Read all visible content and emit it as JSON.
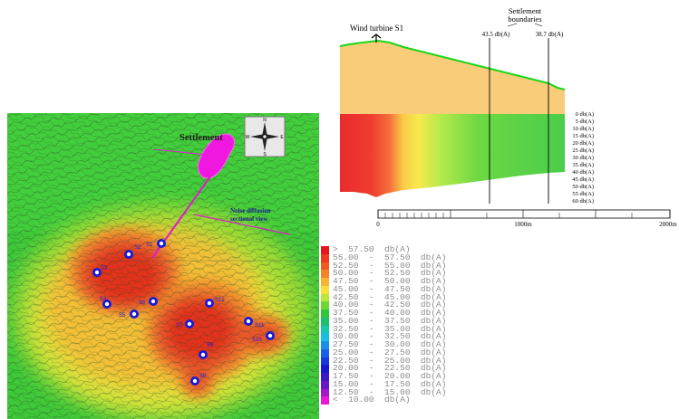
{
  "map": {
    "settlement_label": "Settlement",
    "section_label_line1": "Noise diffusion",
    "section_label_line2": "sectional view",
    "compass": {
      "n": "N",
      "s": "S",
      "e": "E",
      "w": "W"
    },
    "turbines": [
      {
        "id": "S1",
        "label": "S1"
      },
      {
        "id": "S2",
        "label": "S2"
      },
      {
        "id": "S3",
        "label": "S3"
      },
      {
        "id": "S4",
        "label": "S4"
      },
      {
        "id": "S5",
        "label": "S5"
      },
      {
        "id": "S6",
        "label": "S6"
      },
      {
        "id": "S7",
        "label": "S7"
      },
      {
        "id": "S8",
        "label": "S8"
      },
      {
        "id": "S9",
        "label": "S9"
      },
      {
        "id": "S10",
        "label": "S10"
      },
      {
        "id": "S11",
        "label": "S11"
      },
      {
        "id": "S12",
        "label": "S12"
      }
    ]
  },
  "section": {
    "turbine_label": "Wind turbine S1",
    "settlement_line1": "Settlement",
    "settlement_line2": "boundaries",
    "boundary1_value": "43.5 db(A)",
    "boundary2_value": "38.7 db(A)",
    "level_labels": [
      "0 db(A)",
      "5 db(A)",
      "10 db(A)",
      "15 db(A)",
      "20 db(A)",
      "25 db(A)",
      "30 db(A)",
      "35 db(A)",
      "40 db(A)",
      "45 db(A)",
      "50 db(A)",
      "55 db(A)",
      "60 db(A)"
    ],
    "scale_labels": [
      "0",
      "1000m",
      "2000m"
    ]
  },
  "legend": {
    "items": [
      {
        "label": ">  57.50  db(A)",
        "color": "#e8161a"
      },
      {
        "label": "55.00  -  57.50  db(A)",
        "color": "#ee3a1e"
      },
      {
        "label": "52.50  -  55.00  db(A)",
        "color": "#f05a22"
      },
      {
        "label": "50.00  -  52.50  db(A)",
        "color": "#f5832a"
      },
      {
        "label": "47.50  -  50.00  db(A)",
        "color": "#f8b236"
      },
      {
        "label": "45.00  -  47.50  db(A)",
        "color": "#f8e03a"
      },
      {
        "label": "42.50  -  45.00  db(A)",
        "color": "#b8e83a"
      },
      {
        "label": "40.00  -  42.50  db(A)",
        "color": "#6ed832"
      },
      {
        "label": "37.50  -  40.00  db(A)",
        "color": "#2ec838"
      },
      {
        "label": "35.00  -  37.50  db(A)",
        "color": "#1ec070"
      },
      {
        "label": "32.50  -  35.00  db(A)",
        "color": "#18c8b0"
      },
      {
        "label": "30.00  -  32.50  db(A)",
        "color": "#18c0e0"
      },
      {
        "label": "27.50  -  30.00  db(A)",
        "color": "#1890e8"
      },
      {
        "label": "25.00  -  27.50  db(A)",
        "color": "#1860e8"
      },
      {
        "label": "22.50  -  25.00  db(A)",
        "color": "#1838e0"
      },
      {
        "label": "20.00  -  22.50  db(A)",
        "color": "#1818d0"
      },
      {
        "label": "17.50  -  20.00  db(A)",
        "color": "#3818c8"
      },
      {
        "label": "15.00  -  17.50  db(A)",
        "color": "#6818c8"
      },
      {
        "label": "12.50  -  15.00  db(A)",
        "color": "#a018c8"
      },
      {
        "label": "<  10.00  db(A)",
        "color": "#e818d8"
      }
    ]
  }
}
